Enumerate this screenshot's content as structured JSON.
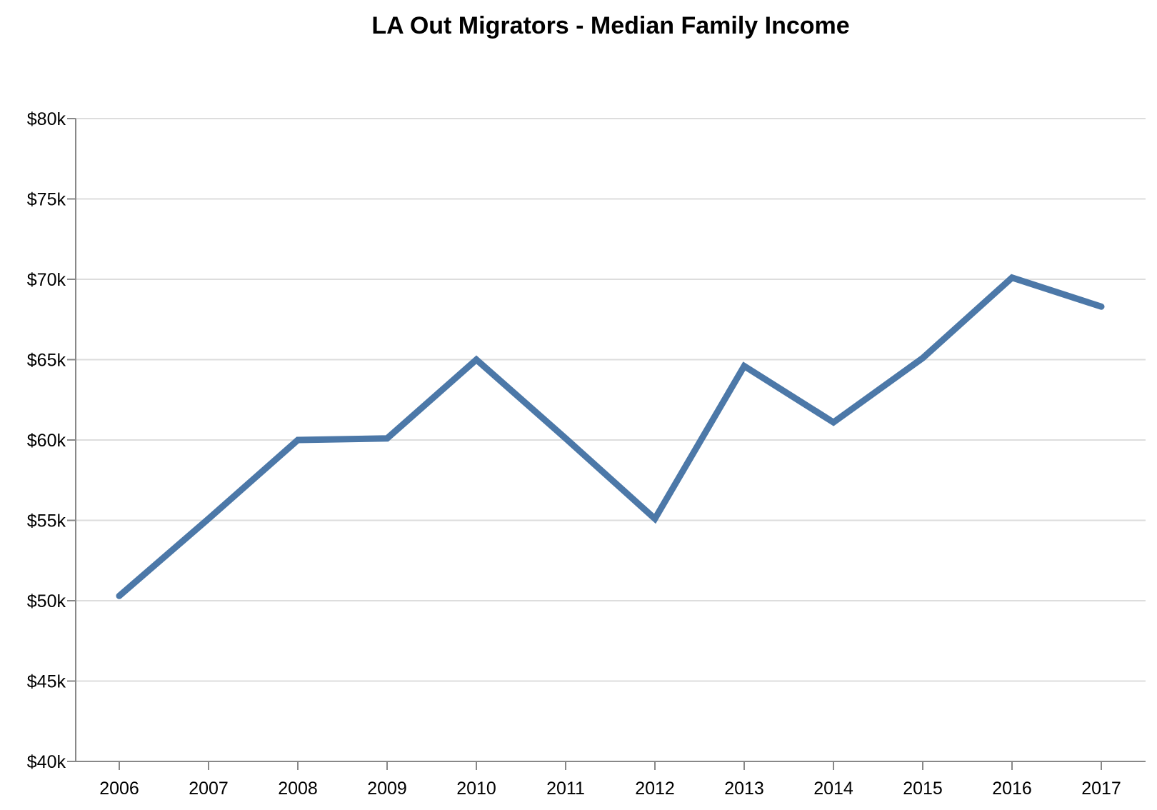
{
  "chart_data": {
    "type": "line",
    "title": "LA Out Migrators - Median Family Income",
    "x": [
      "2006",
      "2007",
      "2008",
      "2009",
      "2010",
      "2011",
      "2012",
      "2013",
      "2014",
      "2015",
      "2016",
      "2017"
    ],
    "series": [
      {
        "values": [
          50300,
          55100,
          60000,
          60100,
          65000,
          60100,
          55100,
          64600,
          61100,
          65100,
          70100,
          68300
        ],
        "color": "#4c78a8"
      }
    ],
    "ylim": [
      40000,
      80000
    ],
    "y_ticks": [
      40000,
      45000,
      50000,
      55000,
      60000,
      65000,
      70000,
      75000,
      80000
    ],
    "y_tick_labels": [
      "$40k",
      "$45k",
      "$50k",
      "$55k",
      "$60k",
      "$65k",
      "$70k",
      "$75k",
      "$80k"
    ],
    "xlabel": "",
    "ylabel": "",
    "grid": true,
    "legend": "none"
  }
}
